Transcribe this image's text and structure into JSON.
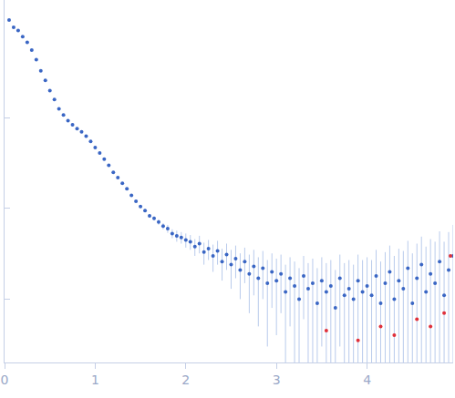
{
  "chart_data": {
    "type": "scatter",
    "log": "y",
    "tick_labels": "x",
    "grid": false,
    "xlim": [
      0,
      4.95
    ],
    "xticks": [
      0,
      1,
      2,
      3,
      4
    ],
    "ylim": [
      0.002,
      20
    ],
    "yticks": [
      0.01,
      0.1,
      1
    ],
    "series": [
      {
        "color": "#3a66c4",
        "marker": "circle",
        "x": [
          0.05,
          0.1,
          0.15,
          0.2,
          0.25,
          0.3,
          0.35,
          0.4,
          0.45,
          0.5,
          0.55,
          0.6,
          0.65,
          0.7,
          0.75,
          0.8,
          0.85,
          0.9,
          0.95,
          1.0,
          1.05,
          1.1,
          1.15,
          1.2,
          1.25,
          1.3,
          1.35,
          1.4,
          1.45,
          1.5,
          1.55,
          1.6,
          1.65,
          1.7,
          1.75,
          1.8,
          1.85,
          1.9,
          1.95,
          2.0,
          2.05,
          2.1,
          2.15,
          2.2,
          2.25,
          2.3,
          2.35,
          2.4,
          2.45,
          2.5,
          2.55,
          2.6,
          2.65,
          2.7,
          2.75,
          2.8,
          2.85,
          2.9,
          2.95,
          3.0,
          3.05,
          3.1,
          3.15,
          3.2,
          3.25,
          3.3,
          3.35,
          3.4,
          3.45,
          3.5,
          3.55,
          3.6,
          3.65,
          3.7,
          3.75,
          3.8,
          3.85,
          3.9,
          3.95,
          4.0,
          4.05,
          4.1,
          4.15,
          4.2,
          4.25,
          4.3,
          4.35,
          4.4,
          4.45,
          4.5,
          4.55,
          4.6,
          4.65,
          4.7,
          4.75,
          4.8,
          4.85,
          4.9,
          4.95
        ],
        "values": [
          12,
          10,
          9.2,
          7.9,
          6.8,
          5.6,
          4.4,
          3.3,
          2.6,
          2.0,
          1.6,
          1.26,
          1.08,
          0.93,
          0.84,
          0.76,
          0.7,
          0.63,
          0.55,
          0.47,
          0.41,
          0.35,
          0.3,
          0.25,
          0.22,
          0.19,
          0.165,
          0.14,
          0.12,
          0.105,
          0.095,
          0.083,
          0.078,
          0.071,
          0.064,
          0.06,
          0.053,
          0.05,
          0.048,
          0.045,
          0.043,
          0.038,
          0.041,
          0.033,
          0.036,
          0.03,
          0.034,
          0.026,
          0.031,
          0.024,
          0.028,
          0.021,
          0.026,
          0.019,
          0.023,
          0.017,
          0.022,
          0.015,
          0.02,
          0.016,
          0.019,
          0.012,
          0.017,
          0.014,
          0.01,
          0.018,
          0.013,
          0.015,
          0.009,
          0.016,
          0.012,
          0.014,
          0.008,
          0.017,
          0.011,
          0.013,
          0.01,
          0.016,
          0.012,
          0.014,
          0.011,
          0.018,
          0.009,
          0.015,
          0.02,
          0.01,
          0.016,
          0.013,
          0.022,
          0.009,
          0.017,
          0.024,
          0.012,
          0.019,
          0.015,
          0.026,
          0.011,
          0.021,
          0.03
        ],
        "errors": [
          0.1,
          0.08,
          0.07,
          0.05,
          0.04,
          0.03,
          0.02,
          0.015,
          0.012,
          0.01,
          0.008,
          0.006,
          0.005,
          0.004,
          0.004,
          0.003,
          0.003,
          0.003,
          0.003,
          0.003,
          0.003,
          0.003,
          0.003,
          0.003,
          0.003,
          0.003,
          0.003,
          0.003,
          0.003,
          0.003,
          0.004,
          0.004,
          0.004,
          0.005,
          0.005,
          0.006,
          0.006,
          0.007,
          0.007,
          0.008,
          0.008,
          0.008,
          0.009,
          0.009,
          0.009,
          0.01,
          0.01,
          0.01,
          0.01,
          0.011,
          0.011,
          0.011,
          0.011,
          0.012,
          0.012,
          0.012,
          0.012,
          0.012,
          0.012,
          0.012,
          0.012,
          0.012,
          0.012,
          0.012,
          0.012,
          0.012,
          0.012,
          0.013,
          0.013,
          0.013,
          0.013,
          0.013,
          0.013,
          0.014,
          0.014,
          0.014,
          0.014,
          0.015,
          0.015,
          0.015,
          0.016,
          0.017,
          0.017,
          0.018,
          0.019,
          0.02,
          0.02,
          0.021,
          0.022,
          0.023,
          0.024,
          0.025,
          0.026,
          0.027,
          0.028,
          0.03,
          0.032,
          0.034,
          0.036
        ]
      },
      {
        "color": "#e0303a",
        "marker": "circle",
        "x": [
          3.55,
          3.9,
          4.15,
          4.3,
          4.55,
          4.7,
          4.85,
          4.92
        ],
        "values": [
          0.0045,
          0.0035,
          0.005,
          0.004,
          0.006,
          0.005,
          0.007,
          0.03
        ]
      }
    ]
  }
}
